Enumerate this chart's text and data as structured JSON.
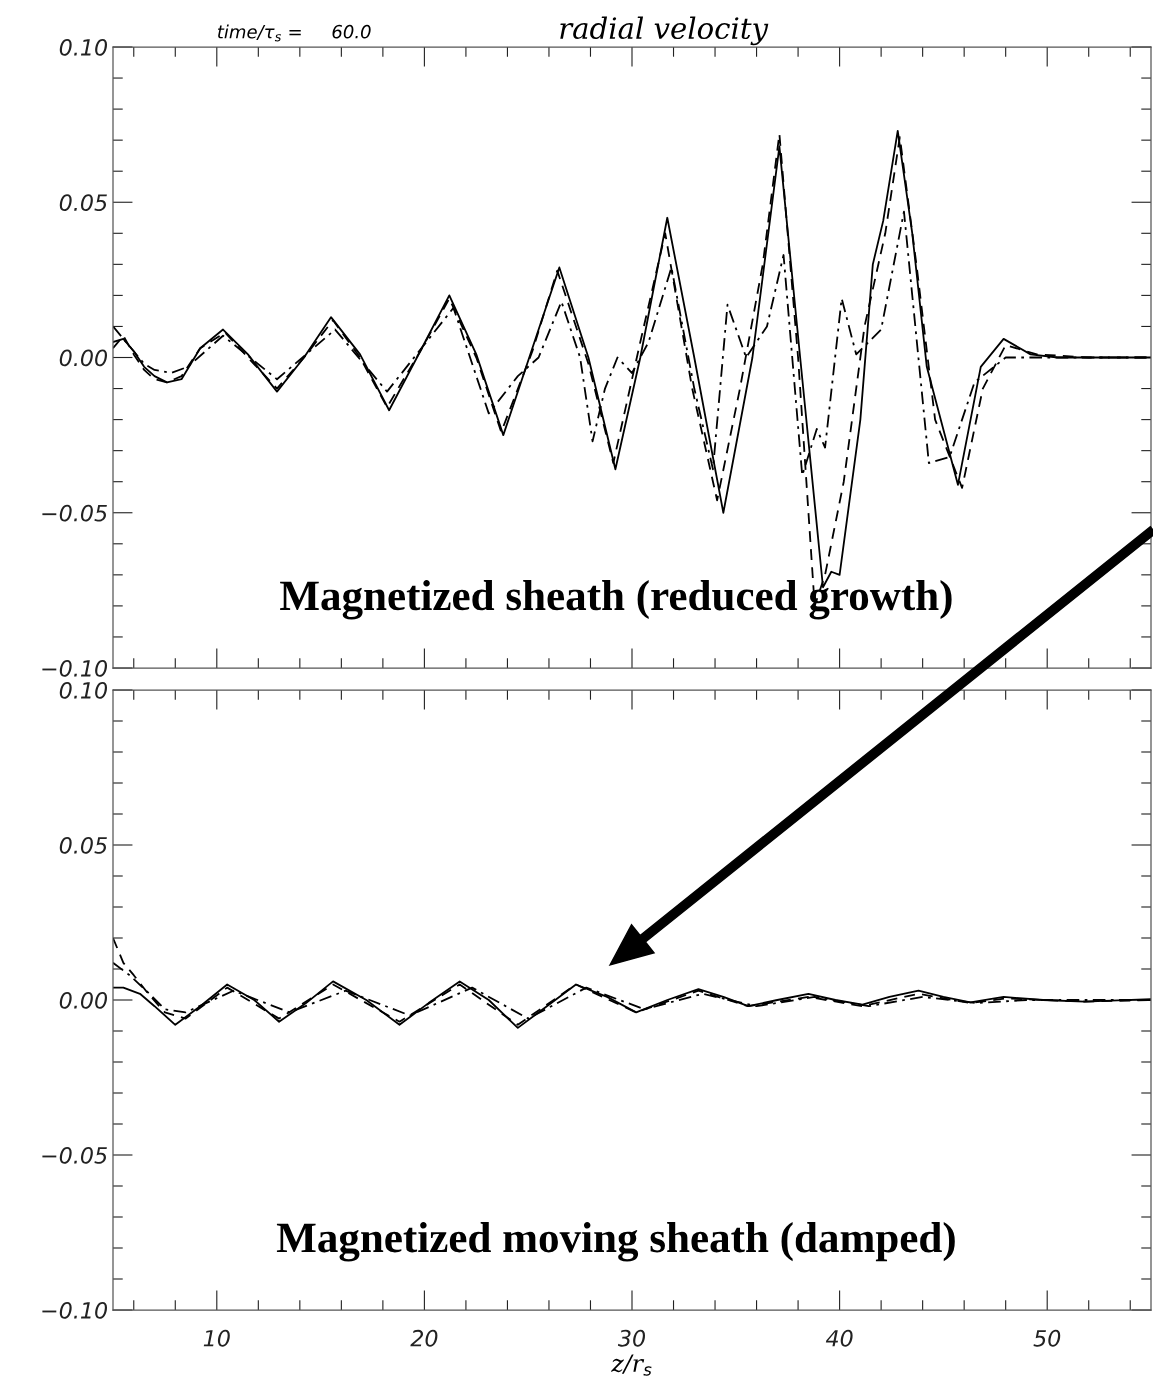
{
  "chart_data": [
    {
      "type": "line",
      "title": "radial velocity",
      "subtitle": "time/τ$_{s}$ =     60.0",
      "xlim": [
        5,
        55
      ],
      "xticks": [
        10,
        20,
        30,
        40,
        50
      ],
      "ylim": [
        -0.1,
        0.1
      ],
      "yticks": [
        {
          "value": -0.1,
          "label": "−0.10"
        },
        {
          "value": -0.05,
          "label": "−0.05"
        },
        {
          "value": 0.0,
          "label": "0.00"
        },
        {
          "value": 0.05,
          "label": "0.05"
        },
        {
          "value": 0.1,
          "label": "0.10"
        }
      ],
      "tick_labels": "y",
      "grid": false,
      "legend": false,
      "annotations": [
        "Magnetized sheath (reduced growth)"
      ],
      "series": [
        {
          "color": "#000000",
          "line_style": "solid",
          "x": [
            5,
            5.5,
            6,
            6.5,
            7,
            7.6,
            8.3,
            9.2,
            10.3,
            11.5,
            12.9,
            14.2,
            15.5,
            16.9,
            18.3,
            19.8,
            21.2,
            22.5,
            23.8,
            25.2,
            26.5,
            27.9,
            29.2,
            30.4,
            31.7,
            33.0,
            34.4,
            35.8,
            37.1,
            38.1,
            39.2,
            39.6,
            40.0,
            41.0,
            41.6,
            42.1,
            42.8,
            43.5,
            44.2,
            45.7,
            46.8,
            47.9,
            49.2,
            50.5,
            52,
            55
          ],
          "values": [
            0.005,
            0.006,
            0.002,
            -0.003,
            -0.006,
            -0.008,
            -0.007,
            0.003,
            0.009,
            0.001,
            -0.011,
            0.0,
            0.013,
            0.001,
            -0.017,
            0.002,
            0.02,
            0.001,
            -0.025,
            0.003,
            0.029,
            0.0,
            -0.036,
            0.0,
            0.045,
            0.0,
            -0.05,
            0.0,
            0.068,
            0.0,
            -0.074,
            -0.069,
            -0.07,
            -0.02,
            0.03,
            0.044,
            0.073,
            0.04,
            -0.003,
            -0.041,
            -0.003,
            0.006,
            0.001,
            0.0,
            0.0,
            0.0
          ]
        },
        {
          "color": "#000000",
          "line_style": "dashed",
          "x": [
            5,
            5.5,
            6,
            6.5,
            7,
            7.6,
            8.3,
            9.2,
            10.4,
            11.5,
            12.9,
            14.2,
            15.6,
            16.9,
            18.2,
            19.8,
            21.2,
            22.5,
            23.7,
            25.2,
            26.4,
            27.9,
            29.1,
            30.4,
            31.6,
            32.9,
            34.1,
            35.2,
            36.3,
            37.1,
            38.0,
            38.8,
            39.3,
            40.2,
            41.2,
            42.2,
            42.9,
            43.7,
            44.6,
            45.9,
            46.9,
            48.0,
            49.5,
            52,
            55
          ],
          "values": [
            0.003,
            0.007,
            0.001,
            -0.004,
            -0.007,
            -0.008,
            -0.006,
            0.003,
            0.008,
            0.0,
            -0.01,
            0.0,
            0.012,
            0.0,
            -0.016,
            0.002,
            0.019,
            0.0,
            -0.024,
            0.002,
            0.028,
            -0.002,
            -0.034,
            0.005,
            0.04,
            -0.01,
            -0.046,
            -0.01,
            0.03,
            0.072,
            0.0,
            -0.08,
            -0.07,
            -0.04,
            0.01,
            0.04,
            0.071,
            0.03,
            -0.02,
            -0.042,
            -0.01,
            0.004,
            0.001,
            0.0,
            0.0
          ]
        },
        {
          "color": "#000000",
          "line_style": "dashdot",
          "x": [
            5,
            5.5,
            6,
            6.5,
            7,
            7.8,
            8.6,
            10.3,
            12.9,
            15.7,
            18.2,
            21.4,
            23.1,
            24.5,
            25.5,
            26.6,
            27.5,
            28.1,
            28.7,
            29.3,
            30.0,
            30.8,
            31.9,
            33.0,
            33.9,
            34.6,
            35.5,
            36.5,
            37.3,
            38.2,
            38.9,
            39.3,
            40.1,
            40.8,
            42.0,
            43.1,
            44.3,
            45.3,
            46.5,
            48.0,
            49.5,
            52,
            55
          ],
          "values": [
            0.01,
            0.006,
            0.002,
            -0.002,
            -0.004,
            -0.005,
            -0.003,
            0.007,
            -0.007,
            0.009,
            -0.011,
            0.016,
            -0.018,
            -0.006,
            0.0,
            0.018,
            0.0,
            -0.027,
            -0.01,
            0.0,
            -0.005,
            0.005,
            0.029,
            -0.01,
            -0.036,
            0.017,
            0.0,
            0.01,
            0.033,
            -0.038,
            -0.023,
            -0.029,
            0.019,
            0.001,
            0.009,
            0.047,
            -0.034,
            -0.032,
            -0.008,
            0.0,
            0.0,
            0.0,
            0.0
          ]
        }
      ]
    },
    {
      "type": "line",
      "xlabel": "z/r$_{s}$",
      "xlim": [
        5,
        55
      ],
      "xticks": [
        10,
        20,
        30,
        40,
        50
      ],
      "ylim": [
        -0.1,
        0.1
      ],
      "yticks": [
        {
          "value": -0.1,
          "label": "−0.10"
        },
        {
          "value": -0.05,
          "label": "−0.05"
        },
        {
          "value": 0.0,
          "label": "0.00"
        },
        {
          "value": 0.05,
          "label": "0.05"
        },
        {
          "value": 0.1,
          "label": "0.10"
        }
      ],
      "grid": false,
      "legend": false,
      "annotations": [
        "Magnetized moving sheath (damped)"
      ],
      "series": [
        {
          "color": "#000000",
          "line_style": "solid",
          "x": [
            5,
            5.5,
            6.3,
            7.0,
            8.0,
            9.2,
            10.5,
            11.8,
            13.0,
            14.3,
            15.6,
            17.2,
            18.8,
            20.2,
            21.7,
            23.1,
            24.5,
            25.9,
            27.3,
            28.8,
            30.2,
            31.7,
            33.2,
            34.4,
            35.6,
            37.0,
            38.5,
            39.8,
            41.1,
            42.4,
            43.8,
            45.0,
            46.3,
            47.9,
            49.8,
            51.8,
            55
          ],
          "values": [
            0.004,
            0.004,
            0.002,
            -0.002,
            -0.008,
            -0.002,
            0.005,
            0.0,
            -0.007,
            -0.001,
            0.006,
            0.0,
            -0.008,
            -0.001,
            0.006,
            0.0,
            -0.009,
            -0.002,
            0.005,
            0.001,
            -0.004,
            0.0,
            0.0035,
            0.001,
            -0.002,
            0.0,
            0.002,
            0.0,
            -0.0015,
            0.001,
            0.003,
            0.001,
            -0.0008,
            0.001,
            0.0,
            -0.0005,
            0.0003
          ]
        },
        {
          "color": "#000000",
          "line_style": "dashed",
          "x": [
            5,
            5.5,
            6.0,
            6.7,
            7.5,
            8.5,
            10.5,
            13.0,
            15.6,
            18.8,
            21.7,
            24.5,
            27.3,
            30.2,
            33.2,
            35.6,
            38.5,
            41.1,
            43.8,
            46.3,
            48,
            51.8,
            55
          ],
          "values": [
            0.02,
            0.012,
            0.008,
            0.002,
            -0.004,
            -0.006,
            0.004,
            -0.006,
            0.005,
            -0.007,
            0.005,
            -0.008,
            0.005,
            -0.004,
            0.003,
            -0.002,
            0.001,
            -0.002,
            0.002,
            -0.001,
            0.0005,
            -0.0005,
            0.0
          ]
        },
        {
          "color": "#000000",
          "line_style": "dashdot",
          "x": [
            5,
            5.8,
            6.6,
            7.5,
            8.5,
            10.8,
            13.5,
            16.2,
            19.3,
            22.3,
            25.0,
            27.8,
            30.6,
            33.4,
            36.0,
            38.8,
            41.4,
            44.0,
            46.6,
            49,
            52,
            55
          ],
          "values": [
            0.012,
            0.008,
            0.003,
            -0.003,
            -0.004,
            0.003,
            -0.004,
            0.003,
            -0.005,
            0.004,
            -0.006,
            0.004,
            -0.003,
            0.002,
            -0.002,
            0.001,
            -0.002,
            0.001,
            -0.001,
            0.0,
            0.0,
            0.0
          ]
        }
      ]
    }
  ]
}
